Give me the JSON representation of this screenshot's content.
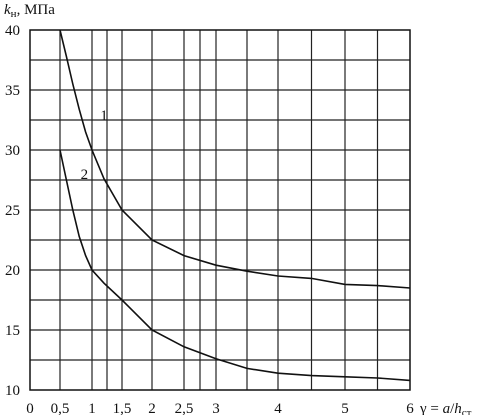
{
  "chart_data": {
    "type": "line",
    "ylabel_main": "k",
    "ylabel_sub": "н",
    "ylabel_unit": ", МПа",
    "xlabel_main": "γ = ",
    "xlabel_a": "a",
    "xlabel_slash": "/",
    "xlabel_h": "h",
    "xlabel_sub": "ст",
    "xlim": [
      0,
      6
    ],
    "ylim": [
      10,
      40
    ],
    "x_ticks": [
      {
        "value": 0,
        "label": "0"
      },
      {
        "value": 0.5,
        "label": "0,5"
      },
      {
        "value": 1,
        "label": "1"
      },
      {
        "value": 1.5,
        "label": "1,5"
      },
      {
        "value": 2,
        "label": "2"
      },
      {
        "value": 2.5,
        "label": "2,5"
      },
      {
        "value": 3,
        "label": "3"
      },
      {
        "value": 4,
        "label": "4"
      },
      {
        "value": 5,
        "label": "5"
      },
      {
        "value": 6,
        "label": "6"
      }
    ],
    "y_ticks": [
      {
        "value": 10,
        "label": "10"
      },
      {
        "value": 15,
        "label": "15"
      },
      {
        "value": 20,
        "label": "20"
      },
      {
        "value": 25,
        "label": "25"
      },
      {
        "value": 30,
        "label": "30"
      },
      {
        "value": 35,
        "label": "35"
      },
      {
        "value": 40,
        "label": "40"
      }
    ],
    "grid": true,
    "series": [
      {
        "label": "1",
        "x": [
          0.5,
          0.6,
          0.7,
          0.8,
          0.9,
          1.0,
          1.2,
          1.5,
          2.0,
          2.5,
          3.0,
          3.5,
          4.0,
          4.5,
          5.0,
          5.5,
          6.0
        ],
        "y": [
          40,
          37.8,
          35.5,
          33.4,
          31.5,
          30.0,
          27.6,
          25.0,
          22.5,
          21.2,
          20.4,
          19.9,
          19.5,
          19.3,
          18.8,
          18.7,
          18.5
        ]
      },
      {
        "label": "2",
        "x": [
          0.5,
          0.6,
          0.7,
          0.8,
          0.9,
          1.0,
          1.2,
          1.5,
          2.0,
          2.5,
          3.0,
          3.5,
          4.0,
          4.5,
          5.0,
          5.5,
          6.0
        ],
        "y": [
          30,
          27.5,
          25.0,
          22.8,
          21.2,
          20.0,
          18.9,
          17.5,
          15.0,
          13.6,
          12.6,
          11.8,
          11.4,
          11.2,
          11.1,
          11.0,
          10.8
        ]
      }
    ]
  }
}
